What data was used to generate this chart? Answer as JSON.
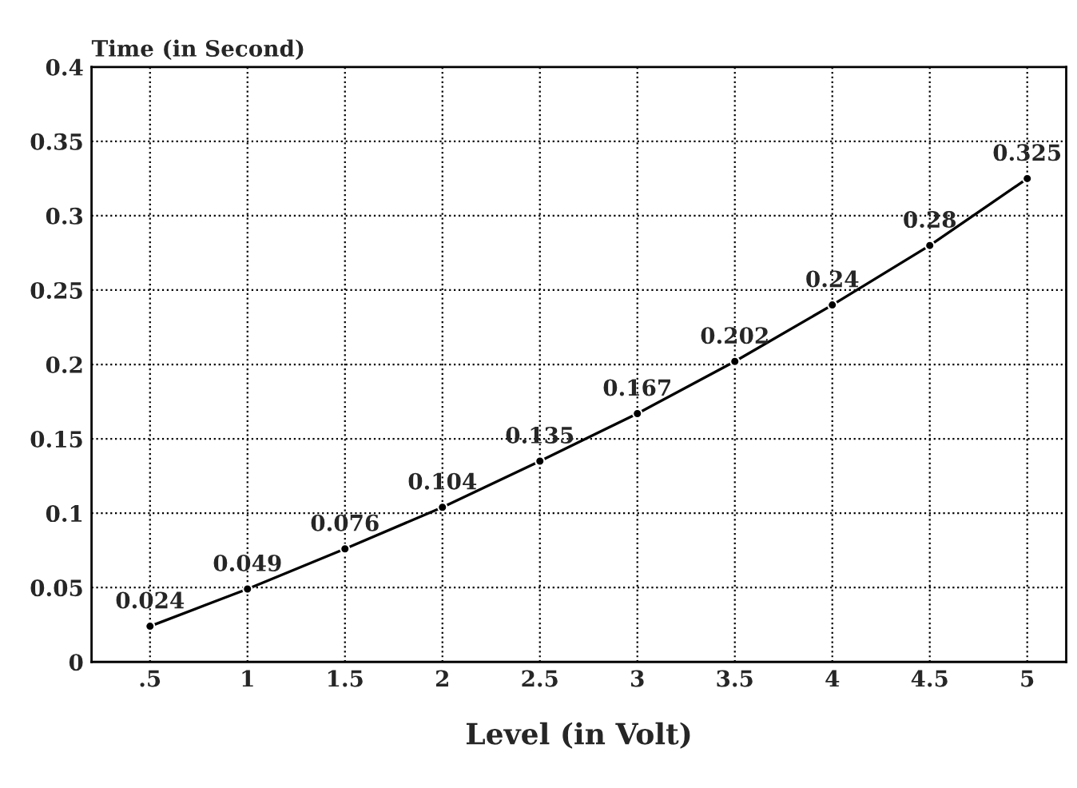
{
  "chart_data": {
    "type": "line",
    "xlabel": "Level (in Volt)",
    "ylabel": "Time (in Second)",
    "x": [
      0.5,
      1,
      1.5,
      2,
      2.5,
      3,
      3.5,
      4,
      4.5,
      5
    ],
    "series": [
      {
        "color": "#000000",
        "values": [
          0.024,
          0.049,
          0.076,
          0.104,
          0.135,
          0.167,
          0.202,
          0.24,
          0.28,
          0.325
        ]
      }
    ],
    "xlim": [
      0.2,
      5.2
    ],
    "xticks": [
      {
        "value": 0.5,
        "label": ".5"
      },
      1,
      1.5,
      2,
      2.5,
      3,
      3.5,
      4,
      4.5,
      5
    ],
    "ylim": [
      0,
      0.4
    ],
    "yticks": [
      0,
      0.05,
      0.1,
      0.15,
      0.2,
      0.25,
      0.3,
      0.35,
      0.4
    ],
    "grid": true,
    "marker": "circle",
    "line_style": "solid",
    "data_labels": true
  }
}
